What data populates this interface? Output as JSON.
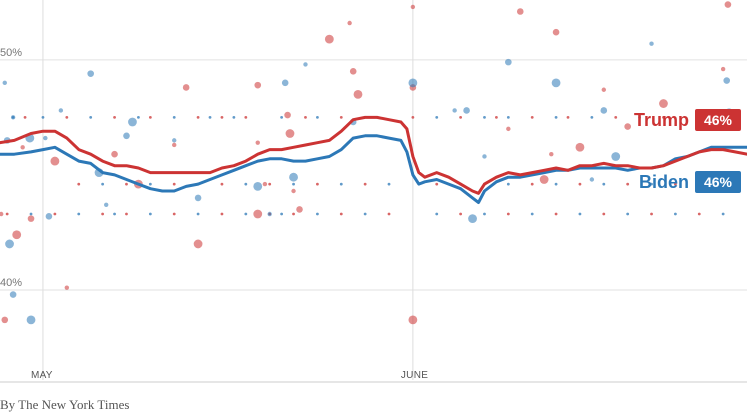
{
  "chart_data": {
    "type": "line",
    "x_ticks": [
      {
        "label": "MAY",
        "day": 0
      },
      {
        "label": "JUNE",
        "day": 31
      }
    ],
    "x_range": [
      -3.6,
      59
    ],
    "y_ticks": [
      {
        "label": "50%",
        "value": 50
      },
      {
        "label": "40%",
        "value": 40
      }
    ],
    "y_range": [
      36.0,
      52.6
    ],
    "series": [
      {
        "name": "Trump",
        "color": "#cc3333",
        "end_label": "46%",
        "line": [
          [
            -3.6,
            46.4
          ],
          [
            -2.4,
            46.5
          ],
          [
            -1,
            46.8
          ],
          [
            0,
            46.9
          ],
          [
            1,
            46.9
          ],
          [
            2,
            46.6
          ],
          [
            3,
            46.1
          ],
          [
            4,
            45.9
          ],
          [
            5,
            45.6
          ],
          [
            6,
            45.4
          ],
          [
            7,
            45.4
          ],
          [
            8,
            45.3
          ],
          [
            9,
            45.1
          ],
          [
            10,
            45.1
          ],
          [
            11,
            45.1
          ],
          [
            12,
            45.1
          ],
          [
            13,
            45.1
          ],
          [
            14,
            45.1
          ],
          [
            15,
            45.3
          ],
          [
            16,
            45.4
          ],
          [
            17,
            45.6
          ],
          [
            18,
            45.9
          ],
          [
            19,
            46.1
          ],
          [
            20,
            46.1
          ],
          [
            21,
            46.2
          ],
          [
            22,
            46.3
          ],
          [
            23,
            46.4
          ],
          [
            24,
            46.5
          ],
          [
            25,
            46.9
          ],
          [
            26,
            47.4
          ],
          [
            27,
            47.5
          ],
          [
            28,
            47.5
          ],
          [
            29,
            47.4
          ],
          [
            30,
            47.3
          ],
          [
            30.5,
            47.0
          ],
          [
            31,
            45.8
          ],
          [
            31.5,
            45.1
          ],
          [
            32,
            44.9
          ],
          [
            33,
            45.1
          ],
          [
            34,
            44.9
          ],
          [
            35,
            44.6
          ],
          [
            36,
            44.3
          ],
          [
            36.5,
            44.2
          ],
          [
            37,
            44.6
          ],
          [
            38,
            44.9
          ],
          [
            39,
            45.1
          ],
          [
            40,
            45.0
          ],
          [
            41,
            45.1
          ],
          [
            42,
            45.2
          ],
          [
            43,
            45.3
          ],
          [
            44,
            45.2
          ],
          [
            45,
            45.4
          ],
          [
            46,
            45.4
          ],
          [
            47,
            45.5
          ],
          [
            48,
            45.4
          ],
          [
            49,
            45.4
          ],
          [
            50,
            45.3
          ],
          [
            51,
            45.3
          ],
          [
            52,
            45.4
          ],
          [
            53,
            45.6
          ],
          [
            54,
            45.8
          ],
          [
            55,
            46.0
          ],
          [
            56,
            46.1
          ],
          [
            57,
            46.1
          ],
          [
            58,
            46.0
          ],
          [
            59,
            45.9
          ]
        ],
        "polls": [
          [
            -3.5,
            43.3
          ],
          [
            -3.2,
            38.7
          ],
          [
            -2.2,
            42.4
          ],
          [
            -1.7,
            46.2
          ],
          [
            -1,
            43.1
          ],
          [
            1,
            45.6
          ],
          [
            2,
            40.1
          ],
          [
            6,
            45.9
          ],
          [
            8,
            44.6
          ],
          [
            11,
            46.3
          ],
          [
            12,
            48.8
          ],
          [
            13,
            42.0
          ],
          [
            18,
            46.4
          ],
          [
            18,
            48.9
          ],
          [
            18,
            43.3
          ],
          [
            18.6,
            44.6
          ],
          [
            20.5,
            47.6
          ],
          [
            20.7,
            46.8
          ],
          [
            21,
            44.3
          ],
          [
            21.5,
            43.5
          ],
          [
            24,
            50.9
          ],
          [
            25.7,
            51.6
          ],
          [
            26,
            49.5
          ],
          [
            26.4,
            48.5
          ],
          [
            31,
            52.3
          ],
          [
            31,
            48.8
          ],
          [
            31,
            38.7
          ],
          [
            39,
            47.0
          ],
          [
            40,
            52.1
          ],
          [
            42,
            44.8
          ],
          [
            42.6,
            45.9
          ],
          [
            43,
            51.2
          ],
          [
            45,
            46.2
          ],
          [
            47,
            48.7
          ],
          [
            49,
            47.1
          ],
          [
            52,
            48.1
          ],
          [
            57,
            49.6
          ],
          [
            57.4,
            52.4
          ]
        ]
      },
      {
        "name": "Biden",
        "color": "#2c78b7",
        "end_label": "46%",
        "line": [
          [
            -3.6,
            45.9
          ],
          [
            -2.4,
            45.9
          ],
          [
            -1,
            46.0
          ],
          [
            0,
            46.1
          ],
          [
            1,
            46.2
          ],
          [
            2,
            45.9
          ],
          [
            3,
            45.6
          ],
          [
            4,
            45.5
          ],
          [
            5,
            45.1
          ],
          [
            6,
            45.0
          ],
          [
            7,
            44.8
          ],
          [
            8,
            44.6
          ],
          [
            9,
            44.4
          ],
          [
            10,
            44.3
          ],
          [
            11,
            44.3
          ],
          [
            12,
            44.5
          ],
          [
            13,
            44.6
          ],
          [
            14,
            44.8
          ],
          [
            15,
            45.0
          ],
          [
            16,
            45.2
          ],
          [
            17,
            45.4
          ],
          [
            18,
            45.6
          ],
          [
            19,
            45.7
          ],
          [
            20,
            45.7
          ],
          [
            21,
            45.6
          ],
          [
            22,
            45.6
          ],
          [
            23,
            45.7
          ],
          [
            24,
            45.8
          ],
          [
            25,
            46.1
          ],
          [
            26,
            46.6
          ],
          [
            27,
            46.7
          ],
          [
            28,
            46.7
          ],
          [
            29,
            46.6
          ],
          [
            30,
            46.5
          ],
          [
            30.5,
            46.0
          ],
          [
            31,
            45.0
          ],
          [
            31.5,
            44.6
          ],
          [
            32,
            44.7
          ],
          [
            33,
            44.8
          ],
          [
            34,
            44.6
          ],
          [
            35,
            44.4
          ],
          [
            36,
            44.0
          ],
          [
            36.5,
            43.8
          ],
          [
            37,
            44.3
          ],
          [
            38,
            44.7
          ],
          [
            39,
            44.9
          ],
          [
            40,
            44.9
          ],
          [
            41,
            45.0
          ],
          [
            42,
            45.1
          ],
          [
            43,
            45.2
          ],
          [
            44,
            45.2
          ],
          [
            45,
            45.3
          ],
          [
            46,
            45.3
          ],
          [
            47,
            45.3
          ],
          [
            48,
            45.3
          ],
          [
            49,
            45.2
          ],
          [
            50,
            45.3
          ],
          [
            51,
            45.3
          ],
          [
            52,
            45.4
          ],
          [
            53,
            45.7
          ],
          [
            54,
            45.8
          ],
          [
            55,
            46.0
          ],
          [
            56,
            46.2
          ],
          [
            57,
            46.2
          ],
          [
            58,
            46.2
          ],
          [
            59,
            46.2
          ]
        ],
        "polls": [
          [
            -3.2,
            49.0
          ],
          [
            -3,
            46.5
          ],
          [
            -2.8,
            42.0
          ],
          [
            -2.5,
            47.5
          ],
          [
            -2.5,
            39.8
          ],
          [
            -1.1,
            46.6
          ],
          [
            0.2,
            46.6
          ],
          [
            0.5,
            43.2
          ],
          [
            -1,
            38.7
          ],
          [
            1.5,
            47.8
          ],
          [
            4,
            49.4
          ],
          [
            4.7,
            45.1
          ],
          [
            5.3,
            43.7
          ],
          [
            7,
            46.7
          ],
          [
            7.5,
            47.3
          ],
          [
            11,
            46.5
          ],
          [
            13,
            44.0
          ],
          [
            18,
            44.5
          ],
          [
            19,
            43.3
          ],
          [
            20.3,
            49.0
          ],
          [
            21,
            44.9
          ],
          [
            22,
            49.8
          ],
          [
            26,
            47.3
          ],
          [
            31,
            49.0
          ],
          [
            34.5,
            47.8
          ],
          [
            35.5,
            47.8
          ],
          [
            36,
            43.1
          ],
          [
            37,
            45.8
          ],
          [
            39,
            49.9
          ],
          [
            43,
            49.0
          ],
          [
            46,
            44.8
          ],
          [
            47,
            47.8
          ],
          [
            48,
            45.8
          ],
          [
            51,
            50.7
          ],
          [
            57.3,
            49.1
          ],
          [
            57.5,
            47.7
          ]
        ]
      }
    ],
    "band_rows": [
      {
        "value": 44.6,
        "days": [
          3,
          5,
          7,
          9,
          11,
          13,
          15,
          17,
          19,
          21,
          23,
          25,
          27,
          29,
          33,
          35,
          37,
          39,
          41,
          43,
          45,
          47,
          49,
          51,
          53,
          55,
          57
        ],
        "colors": [
          "#cc3333",
          "#2c78b7"
        ]
      },
      {
        "value": 43.3,
        "days": [
          -3,
          -1,
          1,
          3,
          5,
          6,
          7,
          9,
          11,
          13,
          15,
          17,
          19,
          20,
          21,
          23,
          25,
          27,
          29,
          33,
          35,
          37,
          39,
          41,
          43,
          45,
          47,
          49,
          51,
          53,
          55,
          57
        ],
        "colors": [
          "#cc3333",
          "#2c78b7"
        ]
      },
      {
        "value": 47.5,
        "days": [
          -2.5,
          -1.5,
          0,
          2,
          4,
          6,
          8,
          9,
          11,
          13,
          14,
          15,
          16,
          17,
          20,
          22,
          23,
          25,
          28,
          31,
          33,
          35,
          37,
          38,
          39,
          41,
          43,
          44,
          46,
          48,
          50,
          52,
          55,
          57
        ],
        "colors": [
          "#2c78b7",
          "#cc3333"
        ]
      }
    ],
    "credit": "By The New York Times"
  }
}
